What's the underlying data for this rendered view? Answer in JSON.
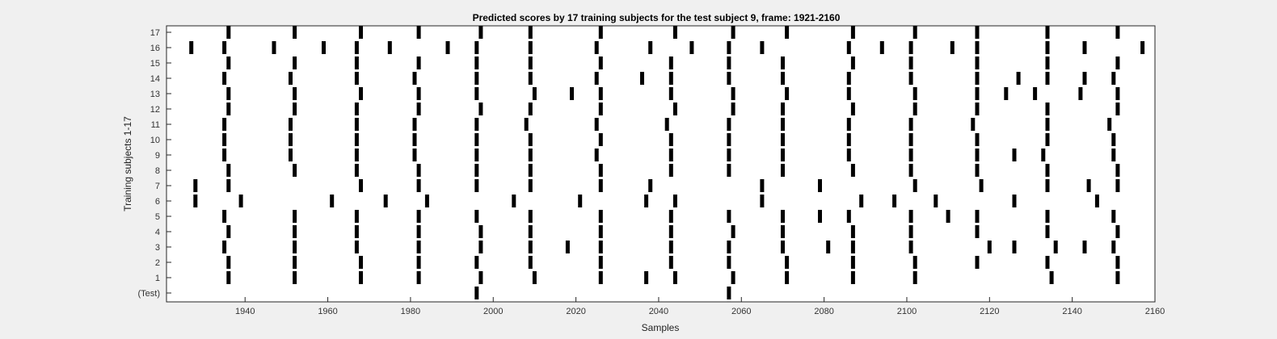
{
  "chart_data": {
    "type": "raster",
    "title": "Predicted scores by 17 training subjects for the test subject 9, frame: 1921-2160",
    "xlabel": "Samples",
    "ylabel": "Training subjects 1-17",
    "xlim": [
      1921,
      2160
    ],
    "x_ticks": [
      1940,
      1960,
      1980,
      2000,
      2020,
      2040,
      2060,
      2080,
      2100,
      2120,
      2140,
      2160
    ],
    "row_labels": [
      "(Test)",
      "1",
      "2",
      "3",
      "4",
      "5",
      "6",
      "7",
      "8",
      "9",
      "10",
      "11",
      "12",
      "13",
      "14",
      "15",
      "16",
      "17"
    ],
    "grid": false,
    "rows": [
      {
        "label": "(Test)",
        "spikes": [
          1996,
          2057
        ]
      },
      {
        "label": "1",
        "spikes": [
          1936,
          1952,
          1968,
          1982,
          1997,
          2010,
          2026,
          2037,
          2044,
          2058,
          2071,
          2087,
          2102,
          2135,
          2151
        ]
      },
      {
        "label": "2",
        "spikes": [
          1936,
          1952,
          1968,
          1982,
          1996,
          2009,
          2026,
          2043,
          2057,
          2071,
          2087,
          2102,
          2117,
          2134,
          2151
        ]
      },
      {
        "label": "3",
        "spikes": [
          1935,
          1952,
          1967,
          1982,
          1997,
          2009,
          2018,
          2026,
          2043,
          2057,
          2070,
          2081,
          2087,
          2101,
          2120,
          2126,
          2136,
          2143,
          2150
        ]
      },
      {
        "label": "4",
        "spikes": [
          1936,
          1952,
          1967,
          1982,
          1997,
          2009,
          2026,
          2043,
          2058,
          2070,
          2087,
          2101,
          2117,
          2134,
          2151
        ]
      },
      {
        "label": "5",
        "spikes": [
          1935,
          1952,
          1967,
          1982,
          1996,
          2009,
          2026,
          2043,
          2057,
          2070,
          2079,
          2086,
          2101,
          2110,
          2117,
          2134,
          2150
        ]
      },
      {
        "label": "6",
        "spikes": [
          1928,
          1939,
          1961,
          1974,
          1984,
          2005,
          2021,
          2037,
          2044,
          2065,
          2089,
          2097,
          2107,
          2126,
          2146
        ]
      },
      {
        "label": "7",
        "spikes": [
          1928,
          1936,
          1968,
          1982,
          1996,
          2009,
          2026,
          2038,
          2065,
          2079,
          2102,
          2118,
          2134,
          2144,
          2151
        ]
      },
      {
        "label": "8",
        "spikes": [
          1936,
          1952,
          1967,
          1982,
          1996,
          2009,
          2026,
          2043,
          2057,
          2070,
          2087,
          2101,
          2117,
          2134,
          2151
        ]
      },
      {
        "label": "9",
        "spikes": [
          1935,
          1951,
          1967,
          1981,
          1996,
          2009,
          2025,
          2043,
          2057,
          2070,
          2086,
          2101,
          2117,
          2126,
          2133,
          2150
        ]
      },
      {
        "label": "10",
        "spikes": [
          1935,
          1951,
          1967,
          1981,
          1996,
          2009,
          2026,
          2043,
          2057,
          2070,
          2086,
          2101,
          2117,
          2134,
          2150
        ]
      },
      {
        "label": "11",
        "spikes": [
          1935,
          1951,
          1967,
          1981,
          1996,
          2008,
          2025,
          2042,
          2057,
          2070,
          2086,
          2101,
          2116,
          2134,
          2149
        ]
      },
      {
        "label": "12",
        "spikes": [
          1936,
          1952,
          1967,
          1982,
          1997,
          2009,
          2026,
          2044,
          2058,
          2070,
          2087,
          2102,
          2117,
          2134,
          2151
        ]
      },
      {
        "label": "13",
        "spikes": [
          1936,
          1952,
          1968,
          1982,
          1996,
          2010,
          2019,
          2026,
          2043,
          2058,
          2071,
          2086,
          2102,
          2117,
          2124,
          2131,
          2142,
          2151
        ]
      },
      {
        "label": "14",
        "spikes": [
          1935,
          1951,
          1967,
          1981,
          1996,
          2009,
          2025,
          2036,
          2043,
          2057,
          2070,
          2086,
          2101,
          2117,
          2127,
          2134,
          2143,
          2150
        ]
      },
      {
        "label": "15",
        "spikes": [
          1936,
          1952,
          1967,
          1982,
          1996,
          2009,
          2026,
          2043,
          2057,
          2070,
          2087,
          2101,
          2117,
          2134,
          2151
        ]
      },
      {
        "label": "16",
        "spikes": [
          1927,
          1935,
          1947,
          1959,
          1967,
          1975,
          1989,
          1996,
          2009,
          2025,
          2038,
          2048,
          2057,
          2065,
          2086,
          2094,
          2101,
          2111,
          2117,
          2134,
          2143,
          2157
        ]
      },
      {
        "label": "17",
        "spikes": [
          1936,
          1952,
          1968,
          1982,
          1997,
          2009,
          2026,
          2044,
          2058,
          2071,
          2087,
          2102,
          2117,
          2134,
          2151
        ]
      }
    ]
  }
}
